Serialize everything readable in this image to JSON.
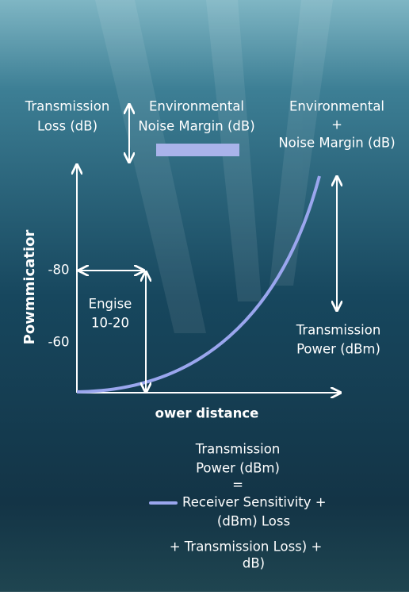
{
  "header": {
    "left_label": [
      "Transmission",
      "Loss (dB)"
    ],
    "center_label": [
      "Environmental",
      "Noise Margin (dB)"
    ],
    "right_label": [
      "Environmental",
      "+",
      "Noise Margin (dB)"
    ]
  },
  "plot": {
    "y_axis_label": "Powmmicatior",
    "x_axis_label": "ower distance",
    "tick_labels": [
      "-80",
      "-60"
    ],
    "range_label": [
      "Engise",
      "10-20"
    ],
    "curve_label": [
      "Transmission",
      "Power (dBm)"
    ]
  },
  "formula": {
    "lhs": [
      "Transmission",
      "Power (dBm)"
    ],
    "equals": "=",
    "legend_line": [
      "Receiver Sensitivity +",
      "(dBm) Loss"
    ],
    "tail": [
      "+  Transmission Loss) +",
      "dB)"
    ]
  }
}
